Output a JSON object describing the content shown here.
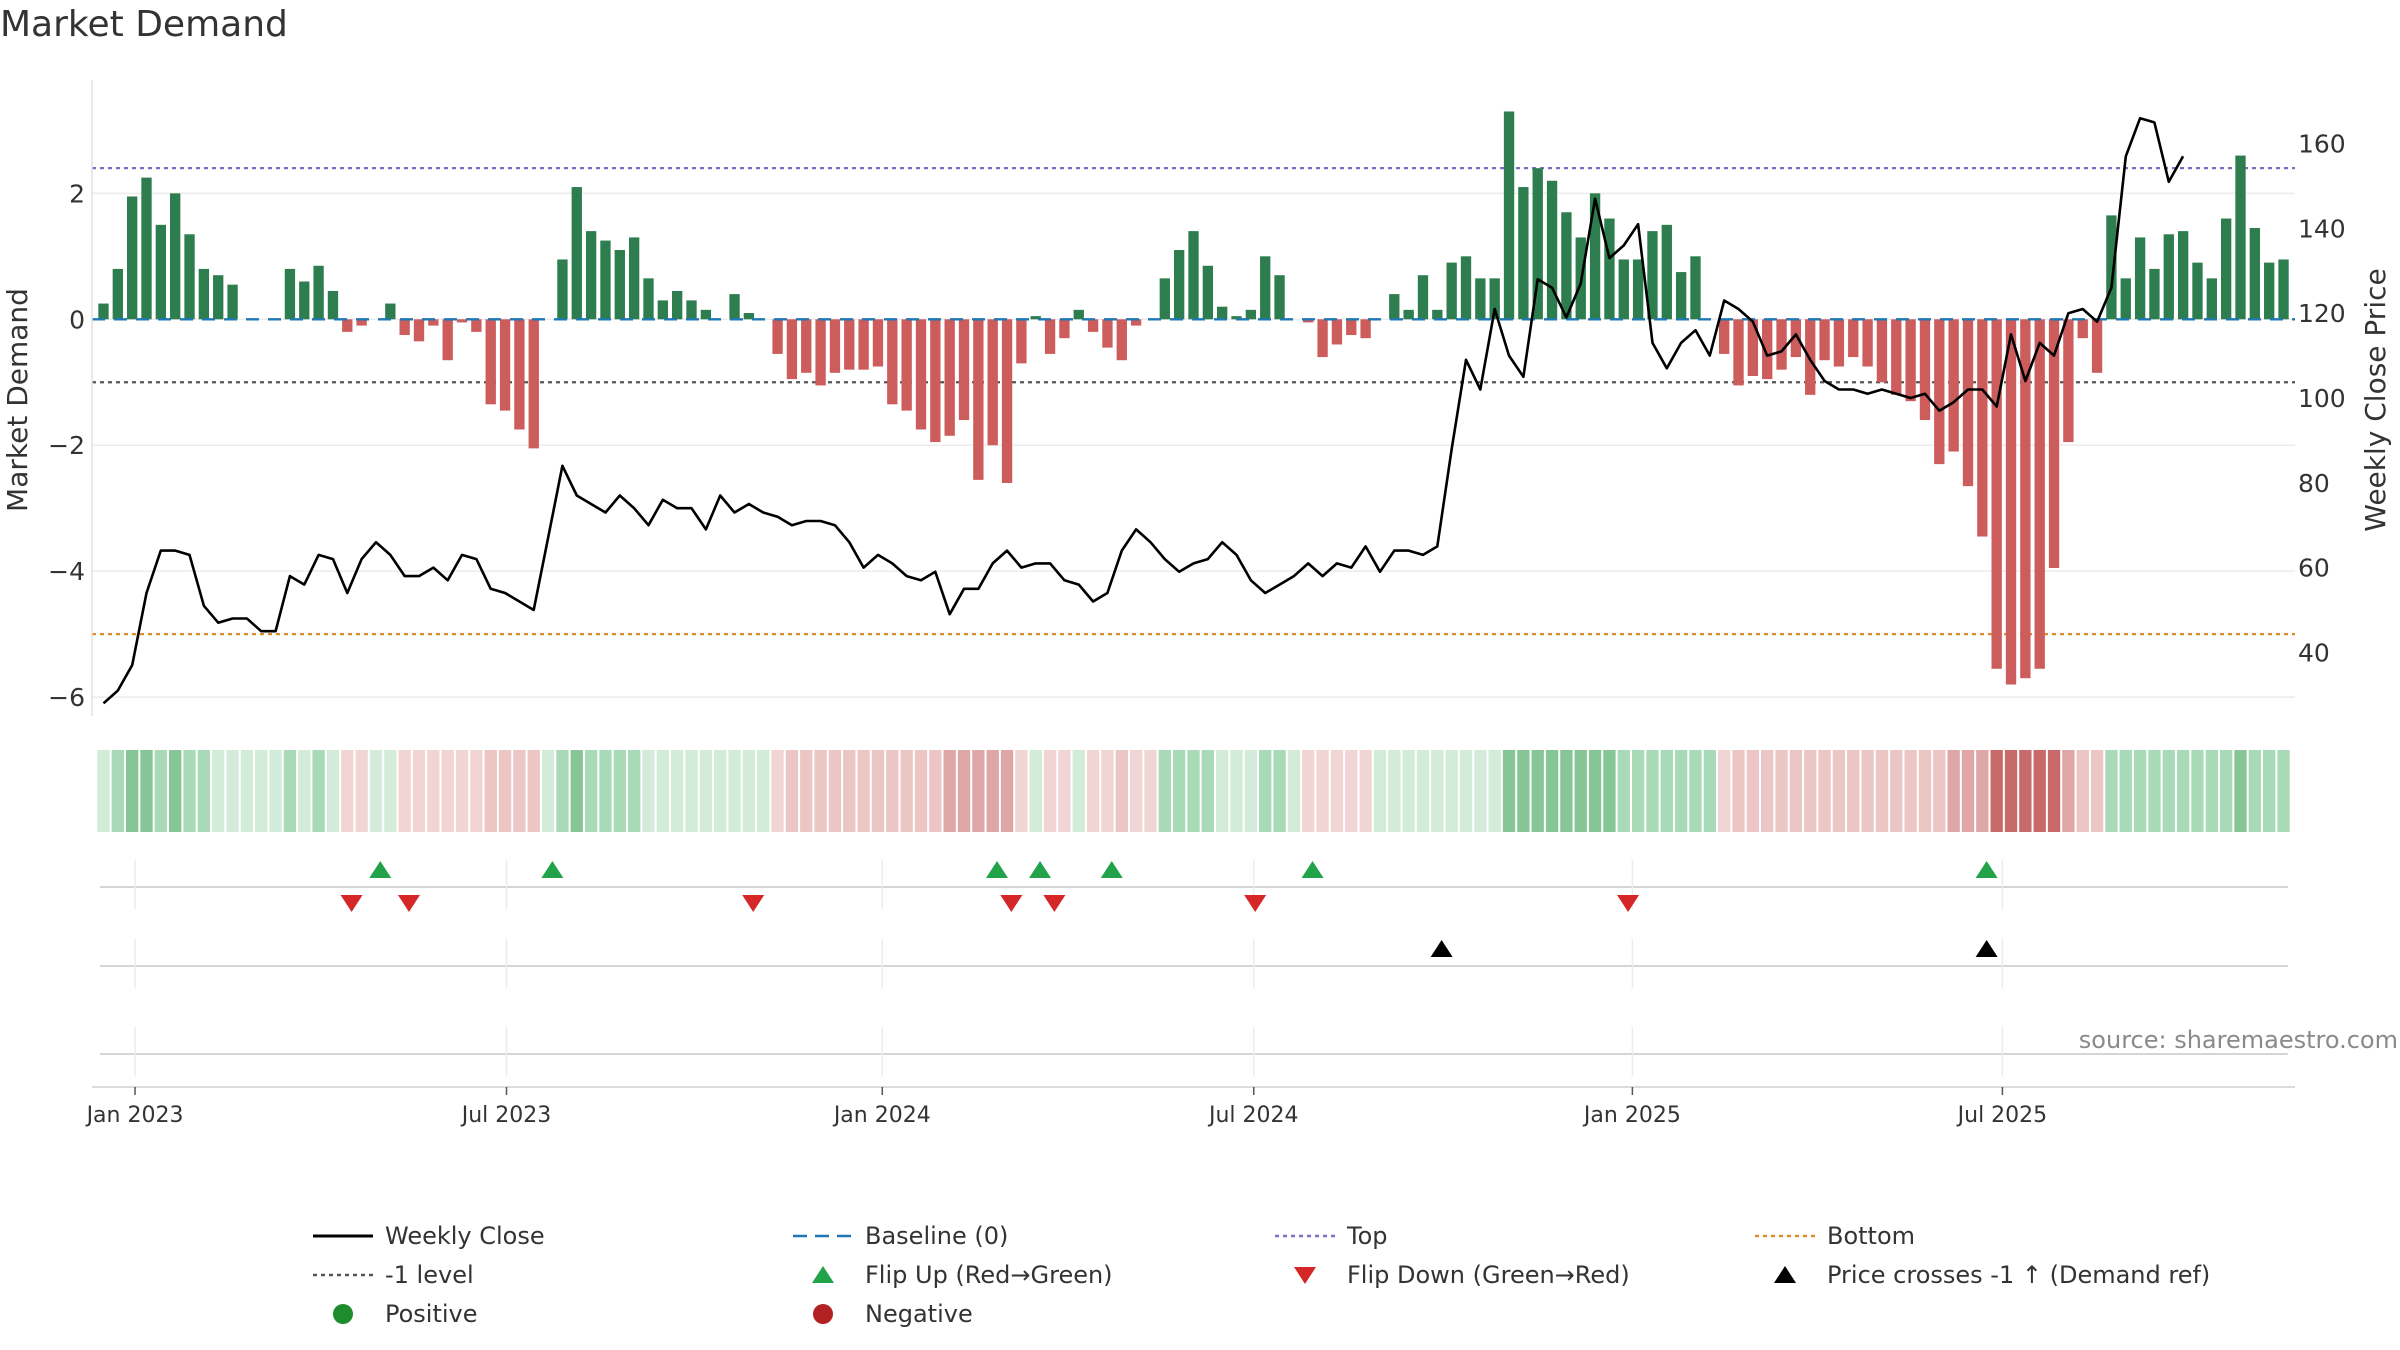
{
  "chart_data": {
    "type": "bar+line",
    "title": "Market Demand",
    "ylabel_left": "Market Demand",
    "ylabel_right": "Weekly Close Price",
    "source_text": "source: sharemaestro.com",
    "left_ylim": [
      -6.3,
      3.8
    ],
    "left_ticks": [
      {
        "v": 2,
        "label": "2"
      },
      {
        "v": 0,
        "label": "0"
      },
      {
        "v": -2,
        "label": "−2"
      },
      {
        "v": -4,
        "label": "−4"
      },
      {
        "v": -6,
        "label": "−6"
      }
    ],
    "right_ylim": [
      25,
      175
    ],
    "right_ticks": [
      {
        "v": 160,
        "label": "160"
      },
      {
        "v": 140,
        "label": "140"
      },
      {
        "v": 120,
        "label": "120"
      },
      {
        "v": 100,
        "label": "100"
      },
      {
        "v": 80,
        "label": "80"
      },
      {
        "v": 60,
        "label": "60"
      },
      {
        "v": 40,
        "label": "40"
      }
    ],
    "x_ticks": [
      {
        "week": 2.2,
        "label": "Jan 2023"
      },
      {
        "week": 28.1,
        "label": "Jul 2023"
      },
      {
        "week": 54.3,
        "label": "Jan 2024"
      },
      {
        "week": 80.2,
        "label": "Jul 2024"
      },
      {
        "week": 106.6,
        "label": "Jan 2025"
      },
      {
        "week": 132.4,
        "label": "Jul 2025"
      }
    ],
    "reference_lines": {
      "top": 2.4,
      "minus_one": -1,
      "bottom": -5,
      "baseline": 0
    },
    "demand": [
      0.25,
      0.8,
      1.95,
      2.25,
      1.5,
      2.0,
      1.35,
      0.8,
      0.7,
      0.55,
      0,
      0,
      0,
      0.8,
      0.6,
      0.85,
      0.45,
      -0.2,
      -0.1,
      0,
      0.25,
      -0.25,
      -0.35,
      -0.1,
      -0.65,
      -0.05,
      -0.2,
      -1.35,
      -1.45,
      -1.75,
      -2.05,
      0,
      0.95,
      2.1,
      1.4,
      1.25,
      1.1,
      1.3,
      0.65,
      0.3,
      0.45,
      0.3,
      0.15,
      0,
      0.4,
      0.1,
      0,
      -0.55,
      -0.95,
      -0.85,
      -1.05,
      -0.85,
      -0.8,
      -0.8,
      -0.75,
      -1.35,
      -1.45,
      -1.75,
      -1.95,
      -1.85,
      -1.6,
      -2.55,
      -2.0,
      -2.6,
      -0.7,
      0.05,
      -0.55,
      -0.3,
      0.15,
      -0.2,
      -0.45,
      -0.65,
      -0.1,
      0,
      0.65,
      1.1,
      1.4,
      0.85,
      0.2,
      0.05,
      0.15,
      1.0,
      0.7,
      0,
      -0.05,
      -0.6,
      -0.4,
      -0.25,
      -0.3,
      0,
      0.4,
      0.15,
      0.7,
      0.15,
      0.9,
      1.0,
      0.65,
      0.65,
      3.3,
      2.1,
      2.4,
      2.2,
      1.7,
      1.3,
      2.0,
      1.6,
      0.95,
      0.95,
      1.4,
      1.5,
      0.75,
      1.0,
      0,
      -0.55,
      -1.05,
      -0.9,
      -0.95,
      -0.8,
      -0.6,
      -1.2,
      -0.65,
      -0.75,
      -0.6,
      -0.75,
      -1.0,
      -1.2,
      -1.3,
      -1.6,
      -2.3,
      -2.1,
      -2.65,
      -3.45,
      -5.55,
      -5.8,
      -5.7,
      -5.55,
      -3.95,
      -1.95,
      -0.3,
      -0.85,
      1.65,
      0.65,
      1.3,
      0.8,
      1.35,
      1.4,
      0.9,
      0.65,
      1.6,
      2.6,
      1.45,
      0.9,
      0.95
    ],
    "weekly_close": [
      28,
      31,
      37,
      54,
      64,
      64,
      63,
      51,
      47,
      48,
      48,
      45,
      45,
      58,
      56,
      63,
      62,
      54,
      62,
      66,
      63,
      58,
      58,
      60,
      57,
      63,
      62,
      55,
      54,
      52,
      50,
      67,
      84,
      77,
      75,
      73,
      77,
      74,
      70,
      76,
      74,
      74,
      69,
      77,
      73,
      75,
      73,
      72,
      70,
      71,
      71,
      70,
      66,
      60,
      63,
      61,
      58,
      57,
      59,
      49,
      55,
      55,
      61,
      64,
      60,
      61,
      61,
      57,
      56,
      52,
      54,
      64,
      69,
      66,
      62,
      59,
      61,
      62,
      66,
      63,
      57,
      54,
      56,
      58,
      61,
      58,
      61,
      60,
      65,
      59,
      64,
      64,
      63,
      65,
      88,
      109,
      102,
      121,
      110,
      105,
      128,
      126,
      119,
      127,
      147,
      133,
      136,
      141,
      113,
      107,
      113,
      116,
      110,
      123,
      121,
      118,
      110,
      111,
      115,
      109,
      104,
      102,
      102,
      101,
      102,
      101,
      100,
      101,
      97,
      99,
      102,
      102,
      98,
      115,
      104,
      113,
      110,
      120,
      121,
      118,
      126,
      157,
      166,
      165,
      151,
      157
    ],
    "heat_levels": [
      1,
      2,
      3,
      3,
      2,
      3,
      2,
      2,
      1,
      1,
      1,
      1,
      1,
      2,
      1,
      2,
      1,
      4,
      4,
      1,
      1,
      4,
      4,
      4,
      4,
      4,
      4,
      5,
      5,
      5,
      5,
      1,
      2,
      3,
      2,
      2,
      2,
      2,
      1,
      1,
      1,
      1,
      1,
      1,
      1,
      1,
      1,
      4,
      5,
      5,
      5,
      5,
      5,
      5,
      5,
      5,
      5,
      5,
      5,
      6,
      6,
      6,
      6,
      6,
      4,
      1,
      4,
      4,
      1,
      4,
      4,
      5,
      4,
      4,
      2,
      2,
      2,
      2,
      1,
      1,
      1,
      2,
      2,
      1,
      4,
      4,
      4,
      4,
      4,
      1,
      1,
      1,
      1,
      1,
      1,
      1,
      1,
      1,
      3,
      3,
      3,
      3,
      3,
      3,
      3,
      3,
      2,
      2,
      2,
      2,
      2,
      2,
      2,
      4,
      5,
      5,
      5,
      5,
      5,
      5,
      5,
      5,
      5,
      5,
      5,
      5,
      5,
      5,
      5,
      6,
      6,
      6,
      7,
      7,
      7,
      7,
      7,
      6,
      5,
      5,
      2,
      2,
      2,
      2,
      2,
      2,
      2,
      2,
      2,
      3,
      2,
      2,
      2
    ],
    "flip_up_weeks": [
      19.3,
      31.3,
      62.3,
      65.3,
      70.3,
      84.3,
      131.3
    ],
    "flip_down_weeks": [
      17.3,
      21.3,
      45.3,
      63.3,
      66.3,
      80.3,
      106.3
    ],
    "price_cross_weeks": [
      93.3,
      131.3
    ],
    "legend": [
      {
        "label": "Weekly Close",
        "marker": "line-black"
      },
      {
        "label": "Baseline (0)",
        "marker": "dash-blue"
      },
      {
        "label": "Top",
        "marker": "dot-purple"
      },
      {
        "label": "Bottom",
        "marker": "dot-orange"
      },
      {
        "label": "-1 level",
        "marker": "dot-gray"
      },
      {
        "label": "Flip Up (Red→Green)",
        "marker": "triangle-up-green"
      },
      {
        "label": "Flip Down (Green→Red)",
        "marker": "triangle-down-red"
      },
      {
        "label": "Price crosses -1 ↑ (Demand ref)",
        "marker": "triangle-up-black"
      },
      {
        "label": "Positive",
        "marker": "circle-green"
      },
      {
        "label": "Negative",
        "marker": "circle-red"
      }
    ],
    "colors": {
      "positive_bar": "#2e7d4f",
      "negative_bar": "#cd5c5c",
      "close_line": "#000000",
      "baseline": "#1f77b4",
      "top_line": "#7b6fc4",
      "bottom_line": "#e08a2c",
      "minus_one_line": "#555555",
      "flip_up": "#22a34a",
      "flip_down": "#d62728",
      "cross": "#000000",
      "positive_dot": "#1e8c2a",
      "negative_dot": "#b22222",
      "heat": [
        "#ffffff",
        "#d3ecd9",
        "#a9dab7",
        "#86c696",
        "#f1d5d5",
        "#ecc5c5",
        "#dfa6a6",
        "#c86a6a"
      ]
    }
  }
}
